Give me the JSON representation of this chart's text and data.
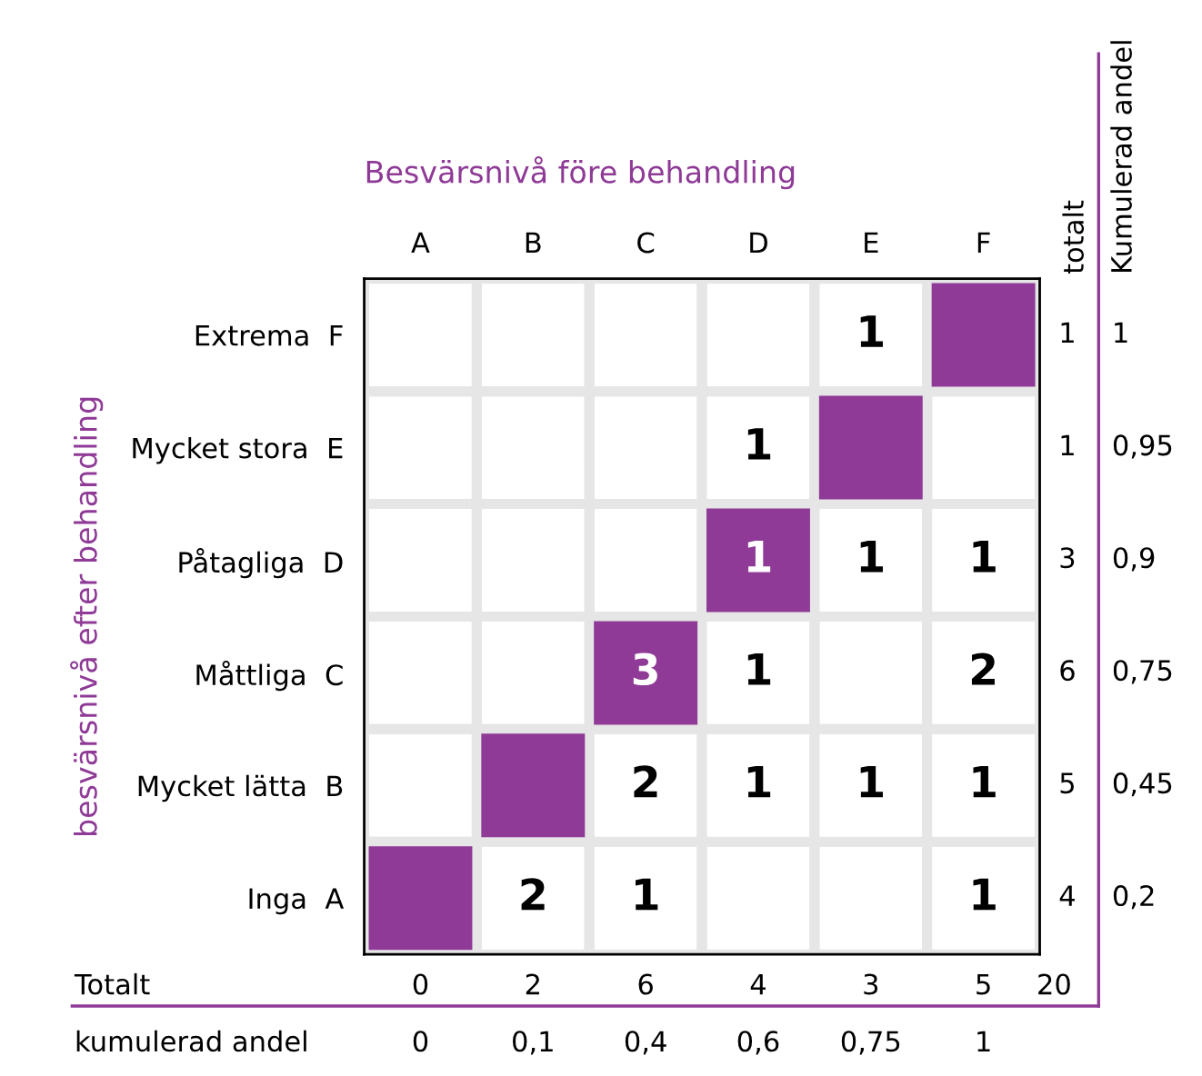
{
  "chart_data": {
    "type": "heatmap",
    "title": "Besvärsnivå före behandling",
    "ylabel": "besvärsnivå efter behandling",
    "categories": [
      "A",
      "B",
      "C",
      "D",
      "E",
      "F"
    ],
    "y_categories": [
      "Extrema  F",
      "Mycket stora  E",
      "Påtagliga  D",
      "Måttliga  C",
      "Mycket lätta  B",
      "Inga  A"
    ],
    "y2_categories": [
      "1",
      "1",
      "3",
      "6",
      "5",
      "4"
    ],
    "cells": [
      [
        null,
        null,
        null,
        null,
        1,
        null
      ],
      [
        null,
        null,
        null,
        1,
        null,
        null
      ],
      [
        null,
        null,
        null,
        1,
        1,
        1
      ],
      [
        null,
        null,
        3,
        1,
        null,
        2
      ],
      [
        null,
        null,
        2,
        1,
        1,
        1
      ],
      [
        null,
        2,
        1,
        null,
        null,
        1
      ]
    ],
    "colors": [
      "#ffffff",
      "#8e3a96"
    ],
    "data_labels": true,
    "annotations": [
      "totalt",
      "Kumulerad andel",
      "1",
      "0,95",
      "0,9",
      "0,75",
      "0,45",
      "0,2",
      "Totalt",
      "0",
      "2",
      "6",
      "4",
      "3",
      "5",
      "20",
      "kumulerad andel",
      "0",
      "0,1",
      "0,4",
      "0,6",
      "0,75",
      "1"
    ]
  }
}
